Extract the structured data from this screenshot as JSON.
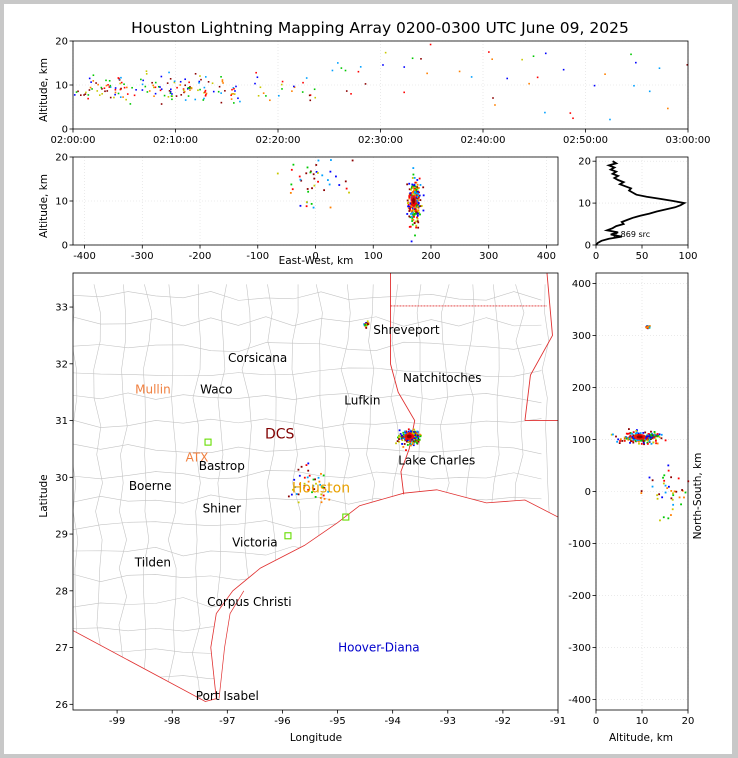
{
  "window": {
    "background": "#c8c8c8"
  },
  "figure": {
    "title": "Houston Lightning Mapping Array 0200-0300 UTC June 09, 2025"
  },
  "colors": {
    "state_border": "#e03030",
    "county_border": "#c4c4c4",
    "coast": "#e03030",
    "source_scale": [
      "#0000ff",
      "#00a0ff",
      "#00c800",
      "#c8c800",
      "#ff8000",
      "#ff0000",
      "#8b0000"
    ],
    "station": "#66dd00",
    "label_city": "#000000",
    "label_mullin": "#f08040",
    "label_atx": "#f08040",
    "label_houston": "#e8a000",
    "label_dcs": "#800000",
    "label_hoover": "#0000cc"
  },
  "icons": {
    "station": "station-square-icon"
  },
  "chart_data": [
    {
      "id": "altitude_time",
      "type": "scatter",
      "xlabel": "",
      "ylabel": "Altitude, km",
      "xlim": [
        "02:00:00",
        "03:00:00"
      ],
      "ylim": [
        0,
        20
      ],
      "xticks": [
        "02:00:00",
        "02:10:00",
        "02:20:00",
        "02:30:00",
        "02:40:00",
        "02:50:00",
        "03:00:00"
      ],
      "yticks": [
        0,
        10,
        20
      ],
      "grid": true,
      "clusters": [
        {
          "t_min_start": 0,
          "t_min_end": 16,
          "alt_center": 9.5,
          "alt_spread": 3.0,
          "density": "high"
        },
        {
          "t_min_start": 16,
          "t_min_end": 24,
          "alt_center": 9.0,
          "alt_spread": 3.0,
          "density": "low"
        },
        {
          "t_min_start": 24,
          "t_min_end": 60,
          "alt_center": 12,
          "alt_spread": 8,
          "density": "sparse"
        }
      ]
    },
    {
      "id": "altitude_eastwest",
      "type": "scatter",
      "xlabel": "East-West, km",
      "ylabel": "Altitude, km",
      "xlim": [
        -420,
        420
      ],
      "ylim": [
        0,
        20
      ],
      "xticks": [
        -400,
        -300,
        -200,
        -100,
        0,
        100,
        200,
        300,
        400
      ],
      "yticks": [
        0,
        10,
        20
      ],
      "grid": true,
      "clusters": [
        {
          "x_center": 170,
          "x_spread": 10,
          "alt_center": 9.5,
          "alt_spread": 5,
          "density": "very-high"
        },
        {
          "x_center": -10,
          "x_spread": 60,
          "alt_center": 15,
          "alt_spread": 6,
          "density": "sparse"
        }
      ]
    },
    {
      "id": "altitude_histogram",
      "type": "line",
      "xlabel": "",
      "ylabel": "",
      "xlim": [
        0,
        100
      ],
      "ylim": [
        0,
        21
      ],
      "xticks": [
        0,
        50,
        100
      ],
      "yticks": [
        0,
        10,
        20
      ],
      "annotation": "2,869 src",
      "profile": [
        {
          "alt": 0.0,
          "count": 0
        },
        {
          "alt": 0.5,
          "count": 2
        },
        {
          "alt": 1.0,
          "count": 6
        },
        {
          "alt": 1.5,
          "count": 14
        },
        {
          "alt": 2.0,
          "count": 28
        },
        {
          "alt": 2.5,
          "count": 16
        },
        {
          "alt": 3.0,
          "count": 24
        },
        {
          "alt": 3.5,
          "count": 12
        },
        {
          "alt": 4.0,
          "count": 18
        },
        {
          "alt": 4.5,
          "count": 22
        },
        {
          "alt": 5.0,
          "count": 30
        },
        {
          "alt": 5.5,
          "count": 28
        },
        {
          "alt": 6.0,
          "count": 34
        },
        {
          "alt": 6.5,
          "count": 40
        },
        {
          "alt": 7.0,
          "count": 48
        },
        {
          "alt": 7.5,
          "count": 58
        },
        {
          "alt": 8.0,
          "count": 66
        },
        {
          "alt": 8.5,
          "count": 76
        },
        {
          "alt": 9.0,
          "count": 86
        },
        {
          "alt": 9.5,
          "count": 92
        },
        {
          "alt": 10.0,
          "count": 96
        },
        {
          "alt": 10.5,
          "count": 84
        },
        {
          "alt": 11.0,
          "count": 70
        },
        {
          "alt": 11.5,
          "count": 55
        },
        {
          "alt": 12.0,
          "count": 44
        },
        {
          "alt": 12.5,
          "count": 40
        },
        {
          "alt": 13.0,
          "count": 36
        },
        {
          "alt": 13.5,
          "count": 38
        },
        {
          "alt": 14.0,
          "count": 32
        },
        {
          "alt": 14.5,
          "count": 26
        },
        {
          "alt": 15.0,
          "count": 30
        },
        {
          "alt": 15.5,
          "count": 24
        },
        {
          "alt": 16.0,
          "count": 20
        },
        {
          "alt": 16.5,
          "count": 24
        },
        {
          "alt": 17.0,
          "count": 18
        },
        {
          "alt": 17.5,
          "count": 22
        },
        {
          "alt": 18.0,
          "count": 16
        },
        {
          "alt": 18.5,
          "count": 20
        },
        {
          "alt": 19.0,
          "count": 14
        },
        {
          "alt": 19.5,
          "count": 22
        },
        {
          "alt": 20.0,
          "count": 18
        }
      ]
    },
    {
      "id": "plan_view",
      "type": "scatter",
      "xlabel": "Longitude",
      "ylabel": "Latitude",
      "xlim": [
        -99.8,
        -91
      ],
      "ylim": [
        25.9,
        33.6
      ],
      "xticks": [
        -99,
        -98,
        -97,
        -96,
        -95,
        -94,
        -93,
        -92,
        -91
      ],
      "yticks": [
        26,
        27,
        28,
        29,
        30,
        31,
        32,
        33
      ],
      "places": [
        {
          "name": "Shreveport",
          "lon": -93.75,
          "lat": 32.6,
          "style": "city"
        },
        {
          "name": "Corsicana",
          "lon": -96.45,
          "lat": 32.1,
          "style": "city"
        },
        {
          "name": "Natchitoches",
          "lon": -93.1,
          "lat": 31.75,
          "style": "city"
        },
        {
          "name": "Mullin",
          "lon": -98.35,
          "lat": 31.55,
          "style": "mullin"
        },
        {
          "name": "Waco",
          "lon": -97.2,
          "lat": 31.55,
          "style": "city"
        },
        {
          "name": "Lufkin",
          "lon": -94.55,
          "lat": 31.35,
          "style": "city"
        },
        {
          "name": "DCS",
          "lon": -96.05,
          "lat": 30.75,
          "style": "dcs"
        },
        {
          "name": "ATX",
          "lon": -97.55,
          "lat": 30.35,
          "style": "atx"
        },
        {
          "name": "Bastrop",
          "lon": -97.1,
          "lat": 30.2,
          "style": "city"
        },
        {
          "name": "Lake Charles",
          "lon": -93.2,
          "lat": 30.3,
          "style": "city"
        },
        {
          "name": "Boerne",
          "lon": -98.4,
          "lat": 29.85,
          "style": "city"
        },
        {
          "name": "Houston",
          "lon": -95.3,
          "lat": 29.8,
          "style": "houston"
        },
        {
          "name": "Shiner",
          "lon": -97.1,
          "lat": 29.45,
          "style": "city"
        },
        {
          "name": "Victoria",
          "lon": -96.5,
          "lat": 28.85,
          "style": "city"
        },
        {
          "name": "Tilden",
          "lon": -98.35,
          "lat": 28.5,
          "style": "city"
        },
        {
          "name": "Corpus Christi",
          "lon": -96.6,
          "lat": 27.8,
          "style": "city"
        },
        {
          "name": "Hoover-Diana",
          "lon": -94.25,
          "lat": 27.0,
          "style": "hoover"
        },
        {
          "name": "Port Isabel",
          "lon": -97.0,
          "lat": 26.15,
          "style": "city"
        }
      ],
      "stations": [
        {
          "lon": -97.35,
          "lat": 30.62
        },
        {
          "lon": -95.9,
          "lat": 28.97
        },
        {
          "lon": -94.85,
          "lat": 29.3
        }
      ],
      "clusters": [
        {
          "lon": -93.7,
          "lat": 30.72,
          "lon_spread": 0.18,
          "lat_spread": 0.12,
          "density": "very-high"
        },
        {
          "lon": -95.5,
          "lat": 29.9,
          "lon_spread": 0.4,
          "lat_spread": 0.3,
          "density": "sparse"
        },
        {
          "lon": -94.5,
          "lat": 32.7,
          "lon_spread": 0.05,
          "lat_spread": 0.04,
          "density": "low"
        }
      ]
    },
    {
      "id": "north_south_altitude",
      "type": "scatter",
      "xlabel": "Altitude, km",
      "ylabel": "North-South, km",
      "xlim": [
        0,
        20
      ],
      "ylim": [
        -420,
        420
      ],
      "xticks": [
        0,
        10,
        20
      ],
      "yticks": [
        -400,
        -300,
        -200,
        -100,
        0,
        100,
        200,
        300,
        400
      ],
      "clusters": [
        {
          "alt_center": 9.5,
          "alt_spread": 4,
          "ns_center": 105,
          "ns_spread": 10,
          "density": "very-high"
        },
        {
          "alt_center": 15,
          "alt_spread": 6,
          "ns_center": 0,
          "ns_spread": 45,
          "density": "sparse"
        },
        {
          "alt_center": 11,
          "alt_spread": 0.5,
          "ns_center": 318,
          "ns_spread": 3,
          "density": "low"
        }
      ]
    }
  ]
}
